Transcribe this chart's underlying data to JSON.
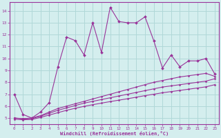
{
  "x": [
    0,
    1,
    2,
    3,
    4,
    5,
    6,
    7,
    8,
    9,
    10,
    11,
    12,
    13,
    14,
    15,
    16,
    17,
    18,
    19,
    20,
    21,
    22,
    23
  ],
  "line1": [
    7.0,
    5.3,
    5.0,
    5.5,
    6.3,
    9.3,
    11.8,
    11.5,
    10.3,
    13.0,
    10.5,
    14.3,
    13.1,
    13.0,
    13.0,
    13.5,
    11.5,
    9.2,
    10.3,
    9.3,
    9.8,
    9.8,
    10.0,
    8.7
  ],
  "line2": [
    5.0,
    4.95,
    5.0,
    5.2,
    5.5,
    5.8,
    6.0,
    6.2,
    6.4,
    6.6,
    6.8,
    7.0,
    7.2,
    7.4,
    7.6,
    7.8,
    8.0,
    8.15,
    8.3,
    8.45,
    8.55,
    8.65,
    8.75,
    8.5
  ],
  "line3": [
    5.0,
    4.92,
    4.95,
    5.15,
    5.4,
    5.65,
    5.85,
    6.05,
    6.25,
    6.4,
    6.55,
    6.7,
    6.85,
    7.0,
    7.15,
    7.3,
    7.45,
    7.6,
    7.7,
    7.8,
    7.9,
    8.0,
    8.1,
    8.3
  ],
  "line4": [
    4.9,
    4.85,
    4.88,
    5.05,
    5.25,
    5.45,
    5.65,
    5.82,
    5.98,
    6.12,
    6.25,
    6.38,
    6.5,
    6.62,
    6.75,
    6.88,
    7.0,
    7.12,
    7.22,
    7.32,
    7.42,
    7.52,
    7.62,
    7.8
  ],
  "color": "#993399",
  "bg_color": "#d4eeee",
  "grid_color": "#b0d8d8",
  "xlabel": "Windchill (Refroidissement éolien,°C)",
  "ylim": [
    4.5,
    14.75
  ],
  "xlim": [
    -0.5,
    23.5
  ],
  "yticks": [
    5,
    6,
    7,
    8,
    9,
    10,
    11,
    12,
    13,
    14
  ],
  "xticks": [
    0,
    1,
    2,
    3,
    4,
    5,
    6,
    7,
    8,
    9,
    10,
    11,
    12,
    13,
    14,
    15,
    16,
    17,
    18,
    19,
    20,
    21,
    22,
    23
  ]
}
